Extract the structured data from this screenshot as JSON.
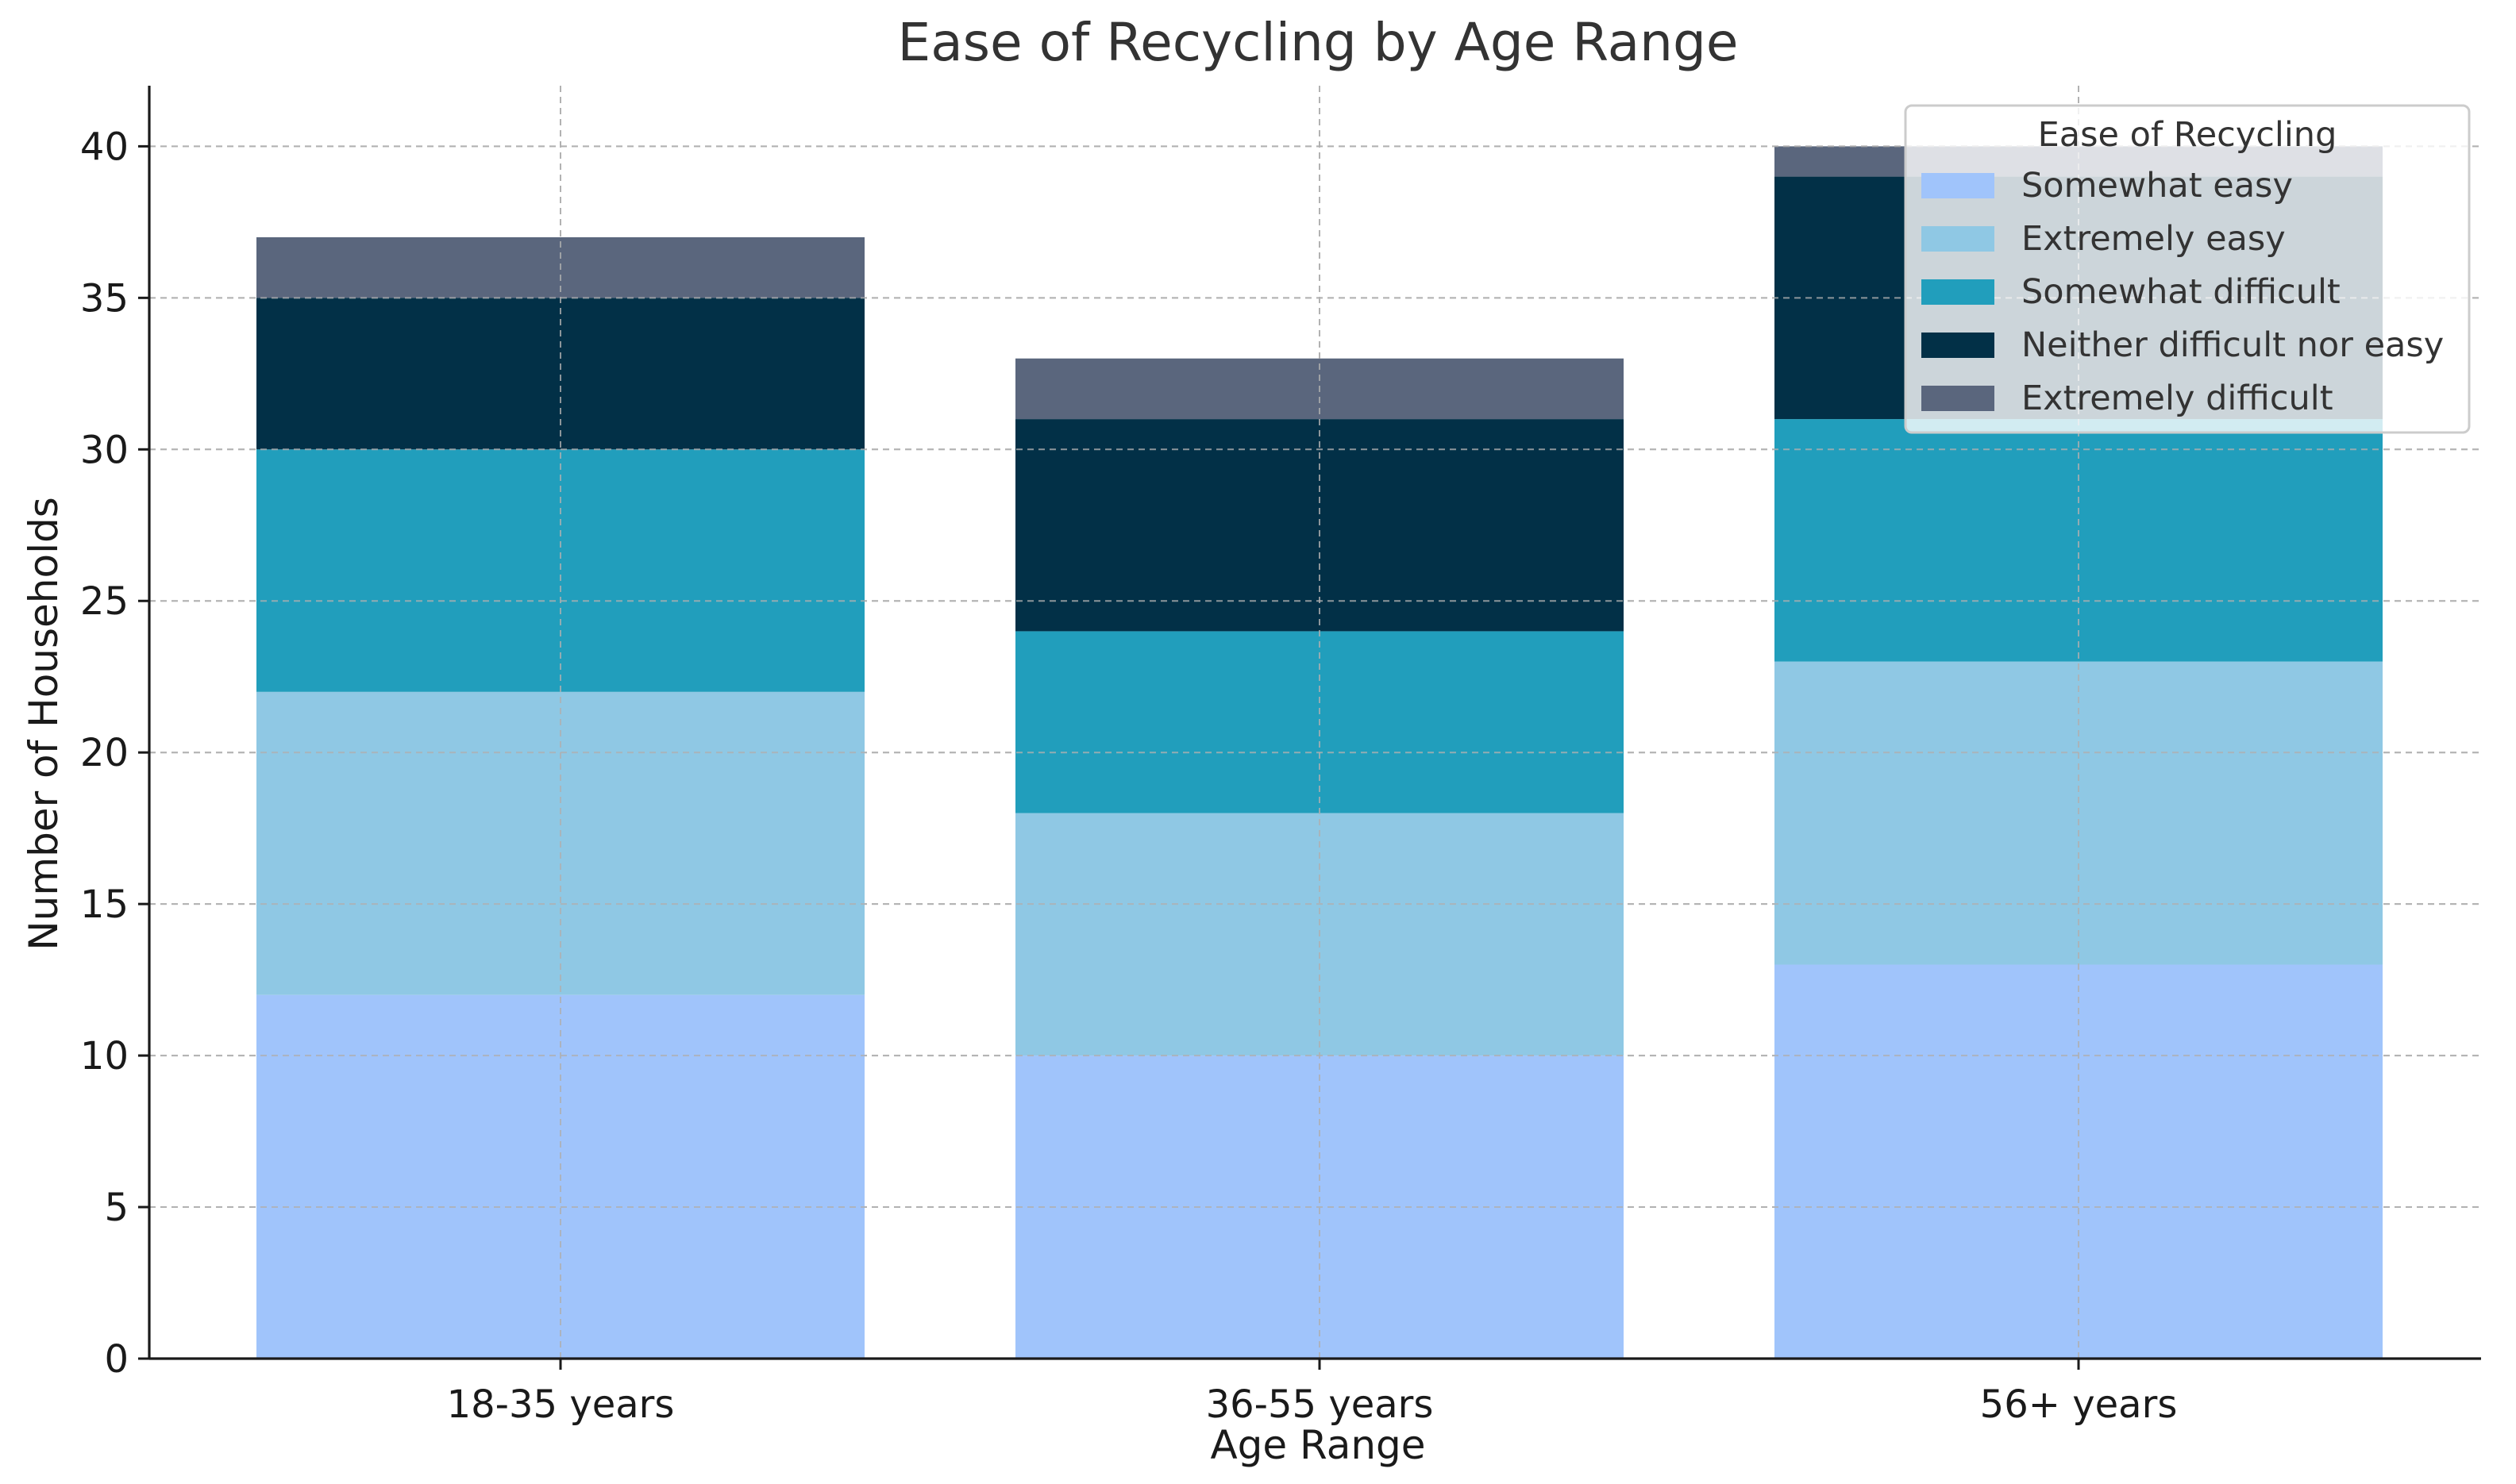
{
  "chart_data": {
    "type": "bar",
    "stacked": true,
    "title": "Ease of Recycling by Age Range",
    "xlabel": "Age Range",
    "ylabel": "Number of Households",
    "ylim": [
      0,
      42
    ],
    "yticks": [
      0,
      5,
      10,
      15,
      20,
      25,
      30,
      35,
      40
    ],
    "grid": true,
    "categories": [
      "18-35 years",
      "36-55 years",
      "56+ years"
    ],
    "series": [
      {
        "name": "Somewhat easy",
        "color": "#a0c4fb",
        "values": [
          12,
          10,
          13
        ]
      },
      {
        "name": "Extremely easy",
        "color": "#8fc8e4",
        "values": [
          10,
          8,
          10
        ]
      },
      {
        "name": "Somewhat difficult",
        "color": "#219ebc",
        "values": [
          8,
          6,
          8
        ]
      },
      {
        "name": "Neither difficult nor easy",
        "color": "#023047",
        "values": [
          5,
          7,
          8
        ]
      },
      {
        "name": "Extremely difficult",
        "color": "#5a667d",
        "values": [
          2,
          2,
          1
        ]
      }
    ],
    "legend": {
      "title": "Ease of Recycling",
      "position": "top-right"
    }
  }
}
